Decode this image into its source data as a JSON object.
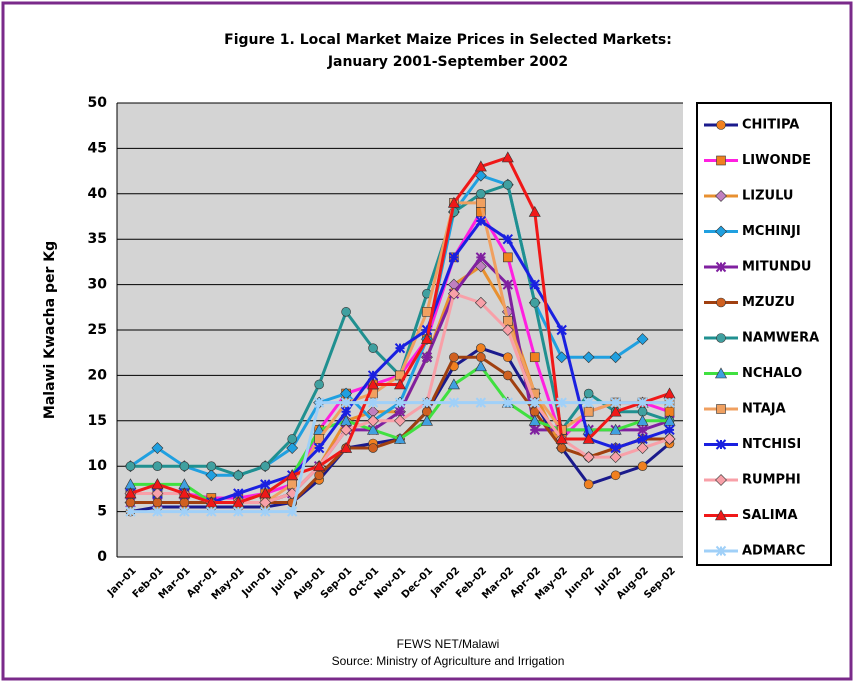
{
  "chart_data": {
    "type": "line",
    "title": "Figure 1.  Local Market Maize Prices in Selected Markets:",
    "subtitle": "January 2001-September 2002",
    "y_label": "Malawi Kwacha per Kg",
    "notes": [
      "FEWS NET/Malawi",
      "Source: Ministry of Agriculture and Irrigation"
    ],
    "categories": [
      "Jan-01",
      "Feb-01",
      "Mar-01",
      "Apr-01",
      "May-01",
      "Jun-01",
      "Jul-01",
      "Aug-01",
      "Sep-01",
      "Oct-01",
      "Nov-01",
      "Dec-01",
      "Jan-02",
      "Feb-02",
      "Mar-02",
      "Apr-02",
      "May-02",
      "Jun-02",
      "Jul-02",
      "Aug-02",
      "Sep-02"
    ],
    "ylim": [
      0,
      50
    ],
    "yticks": [
      0,
      5,
      10,
      15,
      20,
      25,
      30,
      35,
      40,
      45,
      50
    ],
    "grid": true,
    "legend": "right",
    "series": [
      {
        "name": "CHITIPA",
        "color": "#1a1a8c",
        "marker": "circle",
        "marker_color": "#f08020",
        "values": [
          5,
          5.5,
          5.5,
          5.5,
          5.5,
          5.5,
          6,
          8.5,
          12,
          12.5,
          13,
          16,
          21,
          23,
          22,
          17,
          12,
          8,
          9,
          10,
          12.5
        ]
      },
      {
        "name": "LIWONDE",
        "color": "#ff20e0",
        "marker": "square",
        "marker_color": "#f08020",
        "values": [
          7,
          7,
          7,
          6.5,
          6.5,
          7,
          8,
          14,
          18,
          19,
          20,
          24,
          33,
          38,
          33,
          22,
          13,
          16,
          17,
          17,
          16
        ]
      },
      {
        "name": "LIZULU",
        "color": "#e89030",
        "marker": "diamond",
        "marker_color": "#c080c0",
        "values": [
          6,
          6,
          6,
          6,
          6,
          6,
          7,
          10,
          15,
          16,
          16,
          22,
          30,
          32,
          27,
          18,
          12,
          11,
          12,
          13,
          13
        ]
      },
      {
        "name": "MCHINJI",
        "color": "#20a0e0",
        "marker": "diamond",
        "marker_color": "#20a0e0",
        "values": [
          10,
          12,
          10,
          9,
          9,
          10,
          12,
          17,
          18,
          15,
          17,
          24,
          38,
          42,
          41,
          28,
          22,
          22,
          22,
          24,
          null
        ]
      },
      {
        "name": "MITUNDU",
        "color": "#8020a0",
        "marker": "star",
        "marker_color": "#8020a0",
        "values": [
          6,
          6,
          6,
          6,
          6,
          6,
          7,
          10,
          14,
          14,
          16,
          22,
          29,
          33,
          30,
          14,
          14,
          14,
          14,
          14,
          15
        ]
      },
      {
        "name": "MZUZU",
        "color": "#a04010",
        "marker": "circle",
        "marker_color": "#d06020",
        "values": [
          6,
          6,
          6,
          6,
          6,
          6,
          6,
          9,
          12,
          12,
          13,
          16,
          22,
          22,
          20,
          16,
          12,
          11,
          12,
          13,
          13
        ]
      },
      {
        "name": "NAMWERA",
        "color": "#209090",
        "marker": "circle",
        "marker_color": "#40a0a0",
        "values": [
          10,
          10,
          10,
          10,
          9,
          10,
          13,
          19,
          27,
          23,
          20,
          29,
          38,
          40,
          41,
          28,
          14,
          18,
          16,
          16,
          15
        ]
      },
      {
        "name": "NCHALO",
        "color": "#40e040",
        "marker": "triangle",
        "marker_color": "#40a0e0",
        "values": [
          8,
          8,
          8,
          6,
          6,
          7,
          9,
          14,
          15,
          14,
          13,
          15,
          19,
          21,
          17,
          15,
          14,
          14,
          14,
          15,
          15
        ]
      },
      {
        "name": "NTAJA",
        "color": "#f0a060",
        "marker": "square",
        "marker_color": "#f0a060",
        "values": [
          7,
          7,
          7,
          6,
          6,
          6,
          8,
          13,
          17,
          18,
          20,
          27,
          39,
          39,
          26,
          18,
          14,
          16,
          17,
          17,
          17
        ]
      },
      {
        "name": "NTCHISI",
        "color": "#1a20e0",
        "marker": "star",
        "marker_color": "#1a20e0",
        "values": [
          7,
          7,
          7,
          6,
          7,
          8,
          9,
          12,
          16,
          20,
          23,
          25,
          33,
          37,
          35,
          30,
          25,
          13,
          12,
          13,
          14
        ]
      },
      {
        "name": "RUMPHI",
        "color": "#f8a0a8",
        "marker": "diamond",
        "marker_color": "#f8a0a8",
        "values": [
          7,
          7,
          7,
          6,
          6,
          6,
          7,
          10,
          14,
          15,
          15,
          17,
          29,
          28,
          25,
          17,
          13,
          11,
          11,
          12,
          13
        ]
      },
      {
        "name": "SALIMA",
        "color": "#f01818",
        "marker": "triangle",
        "marker_color": "#f01818",
        "values": [
          7,
          8,
          7,
          6,
          6,
          7,
          9,
          10,
          12,
          19,
          19,
          24,
          39,
          43,
          44,
          38,
          13,
          13,
          16,
          17,
          18
        ]
      },
      {
        "name": "ADMARC",
        "color": "#a0d0f8",
        "marker": "star",
        "marker_color": "#a0d0f8",
        "values": [
          5,
          5,
          5,
          5,
          5,
          5,
          5,
          17,
          17,
          17,
          17,
          17,
          17,
          17,
          17,
          17,
          17,
          17,
          17,
          17,
          17
        ]
      }
    ]
  }
}
